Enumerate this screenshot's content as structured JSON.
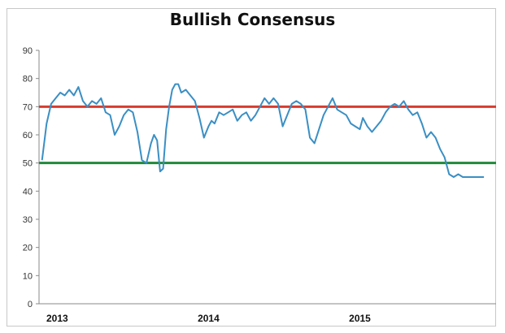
{
  "chart_data": {
    "type": "line",
    "title": "Bullish Consensus",
    "xlabel": "",
    "ylabel": "",
    "ylim": [
      0,
      90
    ],
    "y_ticks": [
      0,
      10,
      20,
      30,
      40,
      50,
      60,
      70,
      80,
      90
    ],
    "x_ticks": [
      {
        "label": "2013",
        "x": 2013.0
      },
      {
        "label": "2014",
        "x": 2014.0
      },
      {
        "label": "2015",
        "x": 2015.0
      }
    ],
    "xlim": [
      2012.88,
      2015.9
    ],
    "grid": false,
    "legend": "none",
    "reference_lines": [
      {
        "y": 70,
        "color": "#d63c2e"
      },
      {
        "y": 50,
        "color": "#1f8a3a"
      }
    ],
    "series": [
      {
        "color": "#3a8fc4",
        "x": [
          2012.9,
          2012.93,
          2012.96,
          2012.99,
          2013.02,
          2013.05,
          2013.08,
          2013.11,
          2013.14,
          2013.17,
          2013.2,
          2013.23,
          2013.26,
          2013.29,
          2013.32,
          2013.35,
          2013.38,
          2013.41,
          2013.44,
          2013.47,
          2013.5,
          2013.53,
          2013.56,
          2013.59,
          2013.62,
          2013.64,
          2013.66,
          2013.68,
          2013.7,
          2013.72,
          2013.74,
          2013.76,
          2013.78,
          2013.8,
          2013.82,
          2013.85,
          2013.88,
          2013.91,
          2013.94,
          2013.97,
          2014.0,
          2014.02,
          2014.04,
          2014.07,
          2014.1,
          2014.13,
          2014.16,
          2014.19,
          2014.22,
          2014.25,
          2014.28,
          2014.31,
          2014.34,
          2014.37,
          2014.4,
          2014.43,
          2014.46,
          2014.49,
          2014.52,
          2014.55,
          2014.58,
          2014.61,
          2014.64,
          2014.67,
          2014.7,
          2014.73,
          2014.76,
          2014.79,
          2014.82,
          2014.85,
          2014.88,
          2014.91,
          2014.94,
          2014.97,
          2015.0,
          2015.02,
          2015.05,
          2015.08,
          2015.11,
          2015.14,
          2015.17,
          2015.2,
          2015.23,
          2015.26,
          2015.29,
          2015.32,
          2015.35,
          2015.38,
          2015.41,
          2015.44,
          2015.47,
          2015.5,
          2015.53,
          2015.56,
          2015.59,
          2015.62,
          2015.65,
          2015.68,
          2015.71,
          2015.74,
          2015.77,
          2015.8,
          2015.82
        ],
        "values": [
          51,
          64,
          71,
          73,
          75,
          74,
          76,
          74,
          77,
          72,
          70,
          72,
          71,
          73,
          68,
          67,
          60,
          63,
          67,
          69,
          68,
          61,
          51,
          50,
          57,
          60,
          58,
          47,
          48,
          62,
          70,
          76,
          78,
          78,
          75,
          76,
          74,
          72,
          66,
          59,
          63,
          65,
          64,
          68,
          67,
          68,
          69,
          65,
          67,
          68,
          65,
          67,
          70,
          73,
          71,
          73,
          71,
          63,
          67,
          71,
          72,
          71,
          69,
          59,
          57,
          62,
          67,
          70,
          73,
          69,
          68,
          67,
          64,
          63,
          62,
          66,
          63,
          61,
          63,
          65,
          68,
          70,
          71,
          70,
          72,
          69,
          67,
          68,
          64,
          59,
          61,
          59,
          55,
          52,
          46,
          45,
          46,
          45,
          45,
          45,
          45,
          45,
          45
        ]
      }
    ]
  }
}
